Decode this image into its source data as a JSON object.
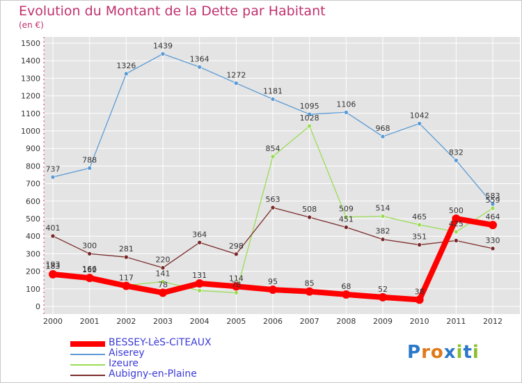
{
  "header": {
    "title": "Evolution du Montant de la Dette par Habitant",
    "subtitle": "(en €)"
  },
  "logo": {
    "text": "Proxiti",
    "letters": [
      "P",
      "r",
      "o",
      "x",
      "i",
      "t",
      "i"
    ],
    "colors": [
      "#2a78c8",
      "#e07a1a",
      "#e07a1a",
      "#2a78c8",
      "#8abf2a",
      "#2a78c8",
      "#8abf2a"
    ]
  },
  "chart_data": {
    "type": "line",
    "title": "Evolution du Montant de la Dette par Habitant",
    "subtitle": "(en €)",
    "xlabel": "",
    "ylabel": "",
    "x": [
      "2000",
      "2001",
      "2002",
      "2003",
      "2004",
      "2005",
      "2006",
      "2007",
      "2008",
      "2009",
      "2010",
      "2011",
      "2012"
    ],
    "ylim": [
      0,
      1500
    ],
    "yticks": [
      0,
      100,
      200,
      300,
      400,
      500,
      600,
      700,
      800,
      900,
      1000,
      1100,
      1200,
      1300,
      1400,
      1500
    ],
    "grid": "horizontal",
    "legend_position": "bottom-left",
    "series": [
      {
        "name": "BESSEY-LèS-CiTEAUX",
        "color": "#ff0000",
        "emphasis": true,
        "values": [
          183,
          162,
          117,
          78,
          131,
          114,
          95,
          85,
          68,
          52,
          38,
          500,
          464
        ],
        "labels": [
          "183",
          "162",
          "117",
          "78",
          "131",
          "114",
          "95",
          "85",
          "68",
          "52",
          "38",
          "500",
          "464"
        ]
      },
      {
        "name": "Aiserey",
        "color": "#5b9bd5",
        "emphasis": false,
        "values": [
          737,
          788,
          1326,
          1439,
          1364,
          1272,
          1181,
          1095,
          1106,
          968,
          1042,
          832,
          583
        ],
        "labels": [
          "737",
          "788",
          "1326",
          "1439",
          "1364",
          "1272",
          "1181",
          "1095",
          "1106",
          "968",
          "1042",
          "832",
          "583"
        ]
      },
      {
        "name": "Izeure",
        "color": "#99dd55",
        "emphasis": false,
        "values": [
          193,
          166,
          120,
          141,
          90,
          78,
          854,
          1028,
          509,
          514,
          465,
          425,
          559
        ],
        "labels": [
          "193",
          "166",
          "",
          "141",
          "",
          "78",
          "854",
          "1028",
          "509",
          "514",
          "465",
          "425",
          "559"
        ]
      },
      {
        "name": "Aubigny-en-Plaine",
        "color": "#7a2a2a",
        "emphasis": false,
        "values": [
          401,
          300,
          281,
          220,
          364,
          298,
          563,
          508,
          451,
          382,
          351,
          375,
          330
        ],
        "labels": [
          "401",
          "300",
          "281",
          "220",
          "364",
          "298",
          "563",
          "508",
          "451",
          "382",
          "351",
          "",
          "330"
        ]
      }
    ]
  }
}
